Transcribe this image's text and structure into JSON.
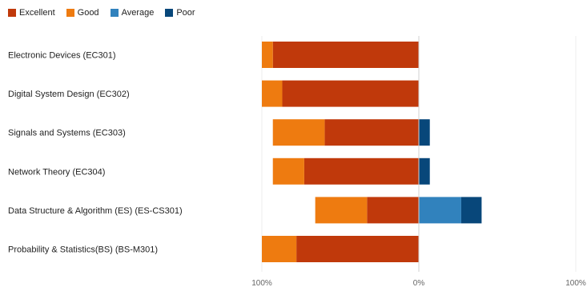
{
  "chart_data": {
    "type": "bar",
    "orientation": "horizontal",
    "stacked": "diverging",
    "categories": [
      "Electronic Devices (EC301)",
      "Digital System Design (EC302)",
      "Signals and Systems (EC303)",
      "Network Theory (EC304)",
      "Data Structure & Algorithm (ES) (ES-CS301)",
      "Probability & Statistics(BS) (BS-M301)"
    ],
    "series": [
      {
        "name": "Excellent",
        "side": "left",
        "color": "#c0390b",
        "values": [
          93,
          87,
          60,
          73,
          33,
          78
        ]
      },
      {
        "name": "Good",
        "side": "left",
        "color": "#ee7b10",
        "values": [
          7,
          13,
          33,
          20,
          33,
          22
        ]
      },
      {
        "name": "Average",
        "side": "right",
        "color": "#3182bd",
        "values": [
          0,
          0,
          0,
          0,
          27,
          0
        ]
      },
      {
        "name": "Poor",
        "side": "right",
        "color": "#08477a",
        "values": [
          0,
          0,
          7,
          7,
          13,
          0
        ]
      }
    ],
    "xticks": [
      "100%",
      "0%",
      "100%"
    ],
    "xlim": [
      -100,
      100
    ],
    "legend": "top-left",
    "grid": true
  }
}
